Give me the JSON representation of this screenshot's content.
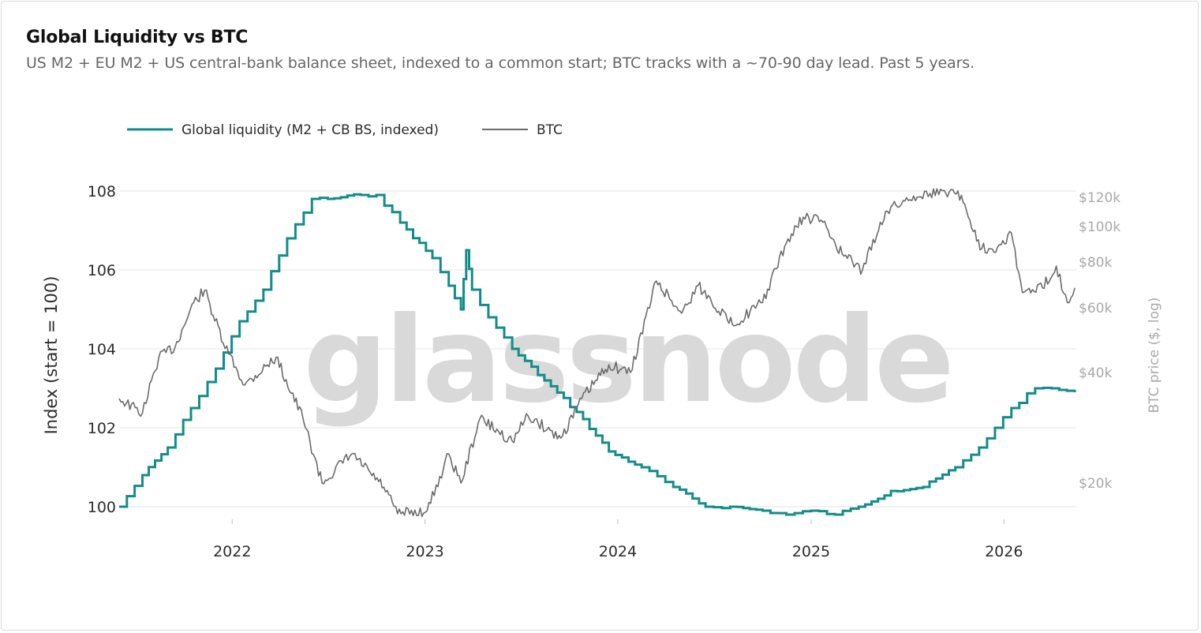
{
  "title": "Global Liquidity vs BTC",
  "subtitle": "US M2 + EU M2 + US central-bank balance sheet, indexed to a common start; BTC tracks with a ~70-90 day lead. Past 5 years.",
  "watermark": "glassnode",
  "colors": {
    "liquidity": "#138c8a",
    "btc": "#6b6b6b",
    "grid": "#e6e6e6",
    "right_axis": "#a9a9a9"
  },
  "chart_data": {
    "type": "line",
    "title": "Global Liquidity vs BTC",
    "legend": [
      "Global liquidity (M2 + CB BS, indexed)",
      "BTC"
    ],
    "legend_position": "top-left",
    "grid": true,
    "x_ticks": [
      "2022",
      "2023",
      "2024",
      "2025",
      "2026"
    ],
    "y_left": {
      "label": "Index (start = 100)",
      "ticks": [
        100,
        102,
        104,
        106,
        108
      ],
      "range": [
        99.6,
        108.0
      ]
    },
    "y_right": {
      "label": "BTC price ($, log)",
      "scale": "log",
      "ticks": [
        20000,
        40000,
        60000,
        80000,
        100000,
        120000
      ],
      "tick_labels": [
        "$20k",
        "$40k",
        "$60k",
        "$80k",
        "$100k",
        "$120k"
      ]
    },
    "series": [
      {
        "name": "Global liquidity (M2 + CB BS, indexed)",
        "axis": "left",
        "points": [
          [
            "2021-06-01",
            100.0
          ],
          [
            "2021-07-15",
            100.8
          ],
          [
            "2021-09-01",
            101.5
          ],
          [
            "2021-10-15",
            102.5
          ],
          [
            "2021-12-01",
            103.5
          ],
          [
            "2022-01-15",
            104.7
          ],
          [
            "2022-03-01",
            105.5
          ],
          [
            "2022-04-15",
            106.8
          ],
          [
            "2022-06-01",
            107.8
          ],
          [
            "2022-07-01",
            107.8
          ],
          [
            "2022-09-01",
            107.9
          ],
          [
            "2022-10-01",
            107.9
          ],
          [
            "2022-11-15",
            107.2
          ],
          [
            "2023-01-15",
            106.3
          ],
          [
            "2023-02-15",
            105.6
          ],
          [
            "2023-03-10",
            105.0
          ],
          [
            "2023-03-20",
            106.5
          ],
          [
            "2023-03-31",
            105.5
          ],
          [
            "2023-05-01",
            104.8
          ],
          [
            "2023-06-15",
            104.0
          ],
          [
            "2023-08-15",
            103.2
          ],
          [
            "2023-10-15",
            102.4
          ],
          [
            "2023-12-15",
            101.4
          ],
          [
            "2024-02-15",
            101.0
          ],
          [
            "2024-04-15",
            100.5
          ],
          [
            "2024-06-15",
            100.0
          ],
          [
            "2024-08-01",
            100.0
          ],
          [
            "2024-10-01",
            99.9
          ],
          [
            "2024-11-15",
            99.8
          ],
          [
            "2025-01-01",
            99.9
          ],
          [
            "2025-02-15",
            99.8
          ],
          [
            "2025-04-01",
            100.0
          ],
          [
            "2025-06-01",
            100.4
          ],
          [
            "2025-08-01",
            100.5
          ],
          [
            "2025-10-01",
            101.0
          ],
          [
            "2025-11-15",
            101.5
          ],
          [
            "2025-12-15",
            102.0
          ],
          [
            "2026-01-15",
            102.5
          ],
          [
            "2026-03-01",
            103.0
          ],
          [
            "2026-04-01",
            103.0
          ],
          [
            "2026-05-15",
            102.9
          ]
        ]
      },
      {
        "name": "BTC",
        "axis": "right",
        "points": [
          [
            "2021-06-01",
            34000
          ],
          [
            "2021-07-15",
            31000
          ],
          [
            "2021-08-15",
            44000
          ],
          [
            "2021-09-15",
            47000
          ],
          [
            "2021-10-20",
            62000
          ],
          [
            "2021-11-10",
            67000
          ],
          [
            "2021-12-15",
            48000
          ],
          [
            "2022-01-25",
            37000
          ],
          [
            "2022-03-25",
            44000
          ],
          [
            "2022-05-15",
            30000
          ],
          [
            "2022-06-20",
            20000
          ],
          [
            "2022-08-15",
            24000
          ],
          [
            "2022-10-15",
            19500
          ],
          [
            "2022-11-10",
            16500
          ],
          [
            "2023-01-05",
            16800
          ],
          [
            "2023-02-15",
            24000
          ],
          [
            "2023-03-10",
            20000
          ],
          [
            "2023-04-15",
            30000
          ],
          [
            "2023-06-15",
            26000
          ],
          [
            "2023-07-15",
            30500
          ],
          [
            "2023-09-15",
            26500
          ],
          [
            "2023-10-25",
            34000
          ],
          [
            "2023-12-15",
            42000
          ],
          [
            "2024-01-25",
            40000
          ],
          [
            "2024-03-14",
            71000
          ],
          [
            "2024-05-01",
            58000
          ],
          [
            "2024-06-01",
            69000
          ],
          [
            "2024-08-05",
            54000
          ],
          [
            "2024-10-01",
            62000
          ],
          [
            "2024-11-15",
            90000
          ],
          [
            "2024-12-17",
            106000
          ],
          [
            "2025-01-20",
            104000
          ],
          [
            "2025-03-01",
            84000
          ],
          [
            "2025-04-08",
            76000
          ],
          [
            "2025-05-22",
            110000
          ],
          [
            "2025-07-14",
            121000
          ],
          [
            "2025-08-14",
            123000
          ],
          [
            "2025-10-06",
            125000
          ],
          [
            "2025-11-20",
            87000
          ],
          [
            "2025-12-20",
            88000
          ],
          [
            "2026-01-15",
            96000
          ],
          [
            "2026-02-05",
            66000
          ],
          [
            "2026-03-15",
            68000
          ],
          [
            "2026-04-10",
            78000
          ],
          [
            "2026-05-01",
            62000
          ],
          [
            "2026-05-15",
            68000
          ]
        ]
      }
    ]
  }
}
